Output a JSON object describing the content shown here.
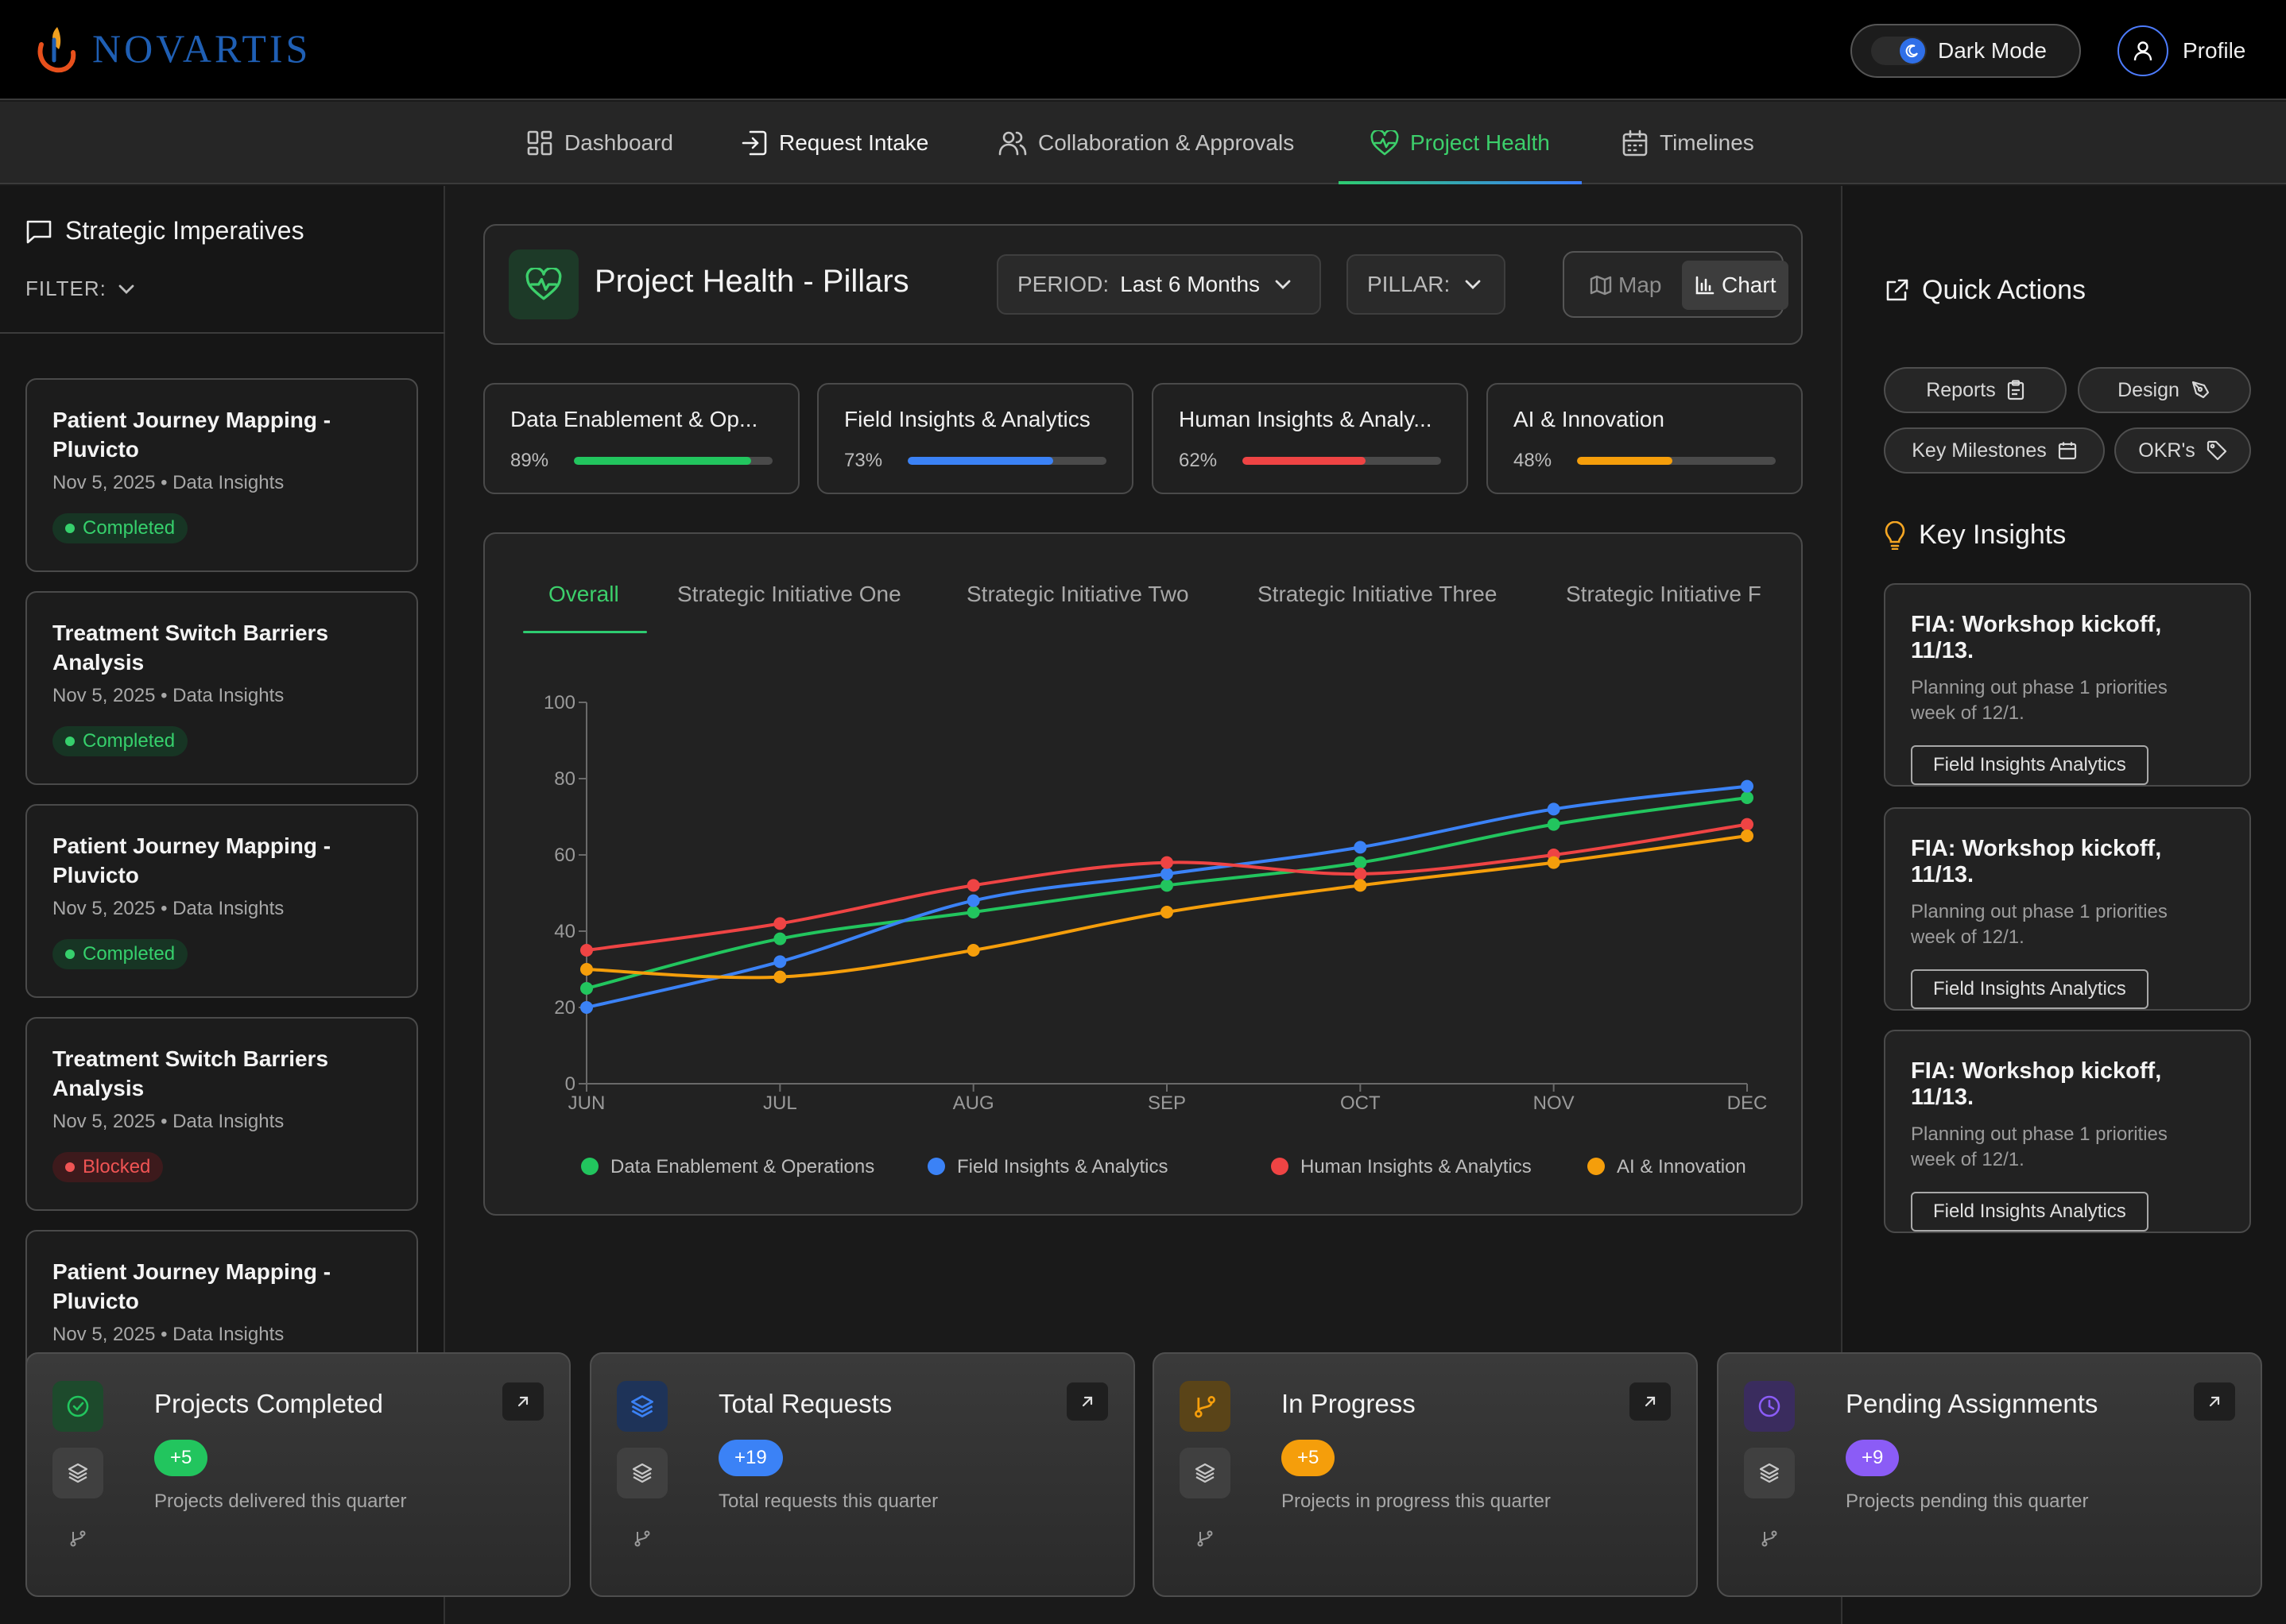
{
  "header": {
    "brand": "NOVARTIS",
    "dark_mode_label": "Dark Mode",
    "profile_label": "Profile"
  },
  "nav": {
    "items": [
      {
        "label": "Dashboard",
        "icon": "grid-icon"
      },
      {
        "label": "Request Intake",
        "icon": "sign-in-icon"
      },
      {
        "label": "Collaboration & Approvals",
        "icon": "users-icon"
      },
      {
        "label": "Project Health",
        "icon": "heart-pulse-icon",
        "active": true
      },
      {
        "label": "Timelines",
        "icon": "calendar-icon"
      }
    ]
  },
  "sidebar": {
    "title": "Strategic Imperatives",
    "filter_label": "FILTER:",
    "cards": [
      {
        "title": "Patient Journey Mapping - Pluvicto",
        "meta": "Nov 5, 2025 • Data Insights",
        "status": "Completed"
      },
      {
        "title": "Treatment Switch Barriers Analysis",
        "meta": "Nov 5, 2025 • Data Insights",
        "status": "Completed"
      },
      {
        "title": "Patient Journey Mapping - Pluvicto",
        "meta": "Nov 5, 2025 • Data Insights",
        "status": "Completed"
      },
      {
        "title": "Treatment Switch Barriers Analysis",
        "meta": "Nov 5, 2025 • Data Insights",
        "status": "Blocked"
      },
      {
        "title": "Patient Journey Mapping - Pluvicto",
        "meta": "Nov 5, 2025 • Data Insights",
        "status": ""
      }
    ]
  },
  "main": {
    "title": "Project Health - Pillars",
    "period_label": "PERIOD:",
    "period_value": "Last 6 Months",
    "pillar_label": "PILLAR:",
    "view_map": "Map",
    "view_chart": "Chart",
    "pillars": [
      {
        "name": "Data Enablement & Op...",
        "percent_label": "89%",
        "value": 0.89,
        "color": "#22c55e"
      },
      {
        "name": "Field Insights & Analytics",
        "percent_label": "73%",
        "value": 0.73,
        "color": "#3b82f6"
      },
      {
        "name": "Human Insights & Analy...",
        "percent_label": "62%",
        "value": 0.62,
        "color": "#ef4444"
      },
      {
        "name": "AI & Innovation",
        "percent_label": "48%",
        "value": 0.48,
        "color": "#f59e0b"
      }
    ],
    "chart_tabs": [
      "Overall",
      "Strategic Initiative One",
      "Strategic Initiative Two",
      "Strategic Initiative Three",
      "Strategic Initiative F"
    ]
  },
  "chart_data": {
    "type": "line",
    "categories": [
      "JUN",
      "JUL",
      "AUG",
      "SEP",
      "OCT",
      "NOV",
      "DEC"
    ],
    "ylim": [
      0,
      100
    ],
    "yticks": [
      0,
      20,
      40,
      60,
      80,
      100
    ],
    "grid": false,
    "legend_position": "bottom",
    "series": [
      {
        "name": "Data Enablement & Operations",
        "color": "#22c55e",
        "values": [
          25,
          38,
          45,
          52,
          58,
          68,
          75
        ]
      },
      {
        "name": "Field Insights & Analytics",
        "color": "#3b82f6",
        "values": [
          20,
          32,
          48,
          55,
          62,
          72,
          78
        ]
      },
      {
        "name": "Human Insights & Analytics",
        "color": "#ef4444",
        "values": [
          35,
          42,
          52,
          58,
          55,
          60,
          68
        ]
      },
      {
        "name": "AI & Innovation",
        "color": "#f59e0b",
        "values": [
          30,
          28,
          35,
          45,
          52,
          58,
          65
        ]
      }
    ]
  },
  "right": {
    "quick_actions_title": "Quick Actions",
    "chips": [
      {
        "label": "Reports",
        "icon": "clipboard-icon"
      },
      {
        "label": "Design",
        "icon": "pen-tool-icon"
      },
      {
        "label": "Key Milestones",
        "icon": "calendar-icon"
      },
      {
        "label": "OKR's",
        "icon": "tag-icon"
      }
    ],
    "key_insights_title": "Key Insights",
    "insights": [
      {
        "title": "FIA: Workshop kickoff, 11/13.",
        "desc": "Planning out phase 1 priorities week of 12/1.",
        "tag": "Field Insights Analytics"
      },
      {
        "title": "FIA: Workshop kickoff, 11/13.",
        "desc": "Planning out phase 1 priorities week of 12/1.",
        "tag": "Field Insights Analytics"
      },
      {
        "title": "FIA: Workshop kickoff, 11/13.",
        "desc": "Planning out phase 1 priorities week of 12/1.",
        "tag": "Field Insights Analytics"
      }
    ]
  },
  "stats": [
    {
      "title": "Projects Completed",
      "badge": "+5",
      "desc": "Projects delivered this quarter",
      "color": "#22c55e"
    },
    {
      "title": "Total Requests",
      "badge": "+19",
      "desc": "Total requests this quarter",
      "color": "#3b82f6"
    },
    {
      "title": "In Progress",
      "badge": "+5",
      "desc": "Projects in progress this quarter",
      "color": "#f59e0b"
    },
    {
      "title": "Pending Assignments",
      "badge": "+9",
      "desc": "Projects pending this quarter",
      "color": "#8b5cf6"
    }
  ]
}
